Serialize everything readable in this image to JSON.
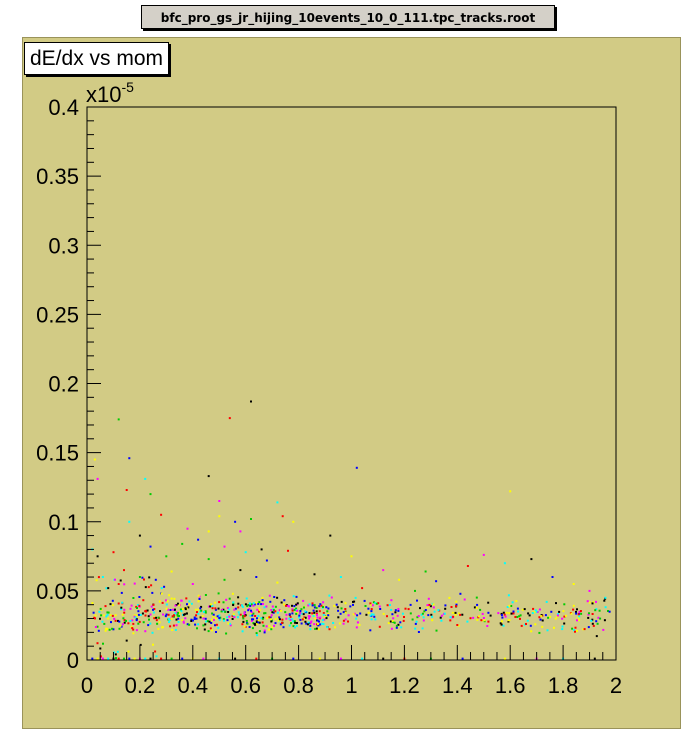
{
  "window": {
    "title": "bfc_pro_gs_jr_hijing_10events_10_0_111.tpc_tracks.root"
  },
  "colors": {
    "pad": "#d2cb85",
    "frame": "#000000",
    "title_box": "#ffffff"
  },
  "chart_data": {
    "type": "scatter",
    "title": "dE/dx vs mom",
    "xlabel": "",
    "ylabel": "",
    "xlim": [
      0,
      2
    ],
    "ylim": [
      0,
      0.4
    ],
    "y_multiplier": "x10",
    "y_multiplier_exp": "-5",
    "x_ticks": [
      {
        "v": 0,
        "label": "0"
      },
      {
        "v": 0.2,
        "label": "0.2"
      },
      {
        "v": 0.4,
        "label": "0.4"
      },
      {
        "v": 0.6,
        "label": "0.6"
      },
      {
        "v": 0.8,
        "label": "0.8"
      },
      {
        "v": 1,
        "label": "1"
      },
      {
        "v": 1.2,
        "label": "1.2"
      },
      {
        "v": 1.4,
        "label": "1.4"
      },
      {
        "v": 1.6,
        "label": "1.6"
      },
      {
        "v": 1.8,
        "label": "1.8"
      },
      {
        "v": 2,
        "label": "2"
      }
    ],
    "y_ticks": [
      {
        "v": 0,
        "label": "0"
      },
      {
        "v": 0.05,
        "label": "0.05"
      },
      {
        "v": 0.1,
        "label": "0.1"
      },
      {
        "v": 0.15,
        "label": "0.15"
      },
      {
        "v": 0.2,
        "label": "0.2"
      },
      {
        "v": 0.25,
        "label": "0.25"
      },
      {
        "v": 0.3,
        "label": "0.3"
      },
      {
        "v": 0.35,
        "label": "0.35"
      },
      {
        "v": 0.4,
        "label": "0.4"
      }
    ],
    "grid": false,
    "point_colors": [
      "#000000",
      "#ff0000",
      "#00cc00",
      "#0000ff",
      "#ffff00",
      "#ff00ff",
      "#00ffff"
    ],
    "points": [
      [
        0.62,
        0.187
      ],
      [
        0.54,
        0.175
      ],
      [
        0.12,
        0.174
      ],
      [
        0.16,
        0.146
      ],
      [
        0.03,
        0.145
      ],
      [
        0.04,
        0.131
      ],
      [
        0.22,
        0.131
      ],
      [
        0.46,
        0.133
      ],
      [
        0.15,
        0.123
      ],
      [
        0.24,
        0.12
      ],
      [
        1.02,
        0.139
      ],
      [
        1.6,
        0.122
      ],
      [
        0.5,
        0.115
      ],
      [
        0.72,
        0.114
      ],
      [
        0.92,
        0.09
      ],
      [
        0.28,
        0.105
      ],
      [
        0.62,
        0.102
      ],
      [
        0.56,
        0.1
      ],
      [
        0.5,
        0.104
      ],
      [
        0.38,
        0.095
      ],
      [
        0.16,
        0.1
      ],
      [
        0.2,
        0.09
      ],
      [
        0.74,
        0.104
      ],
      [
        0.36,
        0.084
      ],
      [
        0.42,
        0.087
      ],
      [
        0.46,
        0.093
      ],
      [
        0.52,
        0.082
      ],
      [
        0.6,
        0.078
      ],
      [
        0.66,
        0.08
      ],
      [
        0.76,
        0.079
      ],
      [
        0.3,
        0.075
      ],
      [
        0.24,
        0.082
      ],
      [
        0.78,
        0.1
      ],
      [
        0.58,
        0.093
      ],
      [
        0.02,
        0.08
      ],
      [
        0.04,
        0.075
      ],
      [
        0.1,
        0.078
      ],
      [
        0.46,
        0.073
      ],
      [
        0.68,
        0.072
      ],
      [
        1.0,
        0.075
      ],
      [
        1.5,
        0.076
      ],
      [
        1.58,
        0.07
      ],
      [
        1.68,
        0.073
      ],
      [
        1.44,
        0.068
      ],
      [
        1.28,
        0.064
      ],
      [
        1.32,
        0.057
      ],
      [
        1.18,
        0.058
      ],
      [
        1.12,
        0.065
      ],
      [
        0.96,
        0.06
      ],
      [
        0.86,
        0.062
      ],
      [
        1.04,
        0.052
      ],
      [
        1.24,
        0.05
      ],
      [
        1.76,
        0.06
      ],
      [
        1.84,
        0.055
      ],
      [
        1.9,
        0.05
      ],
      [
        1.96,
        0.045
      ],
      [
        0.58,
        0.065
      ],
      [
        0.14,
        0.065
      ],
      [
        0.2,
        0.06
      ],
      [
        0.26,
        0.058
      ],
      [
        0.32,
        0.064
      ],
      [
        0.4,
        0.055
      ],
      [
        0.06,
        0.06
      ],
      [
        0.08,
        0.052
      ],
      [
        0.12,
        0.055
      ],
      [
        0.52,
        0.058
      ],
      [
        0.64,
        0.06
      ],
      [
        0.72,
        0.056
      ]
    ],
    "zero_points": [
      [
        0.02,
        0
      ],
      [
        0.04,
        0
      ],
      [
        0.06,
        0
      ],
      [
        0.08,
        0
      ],
      [
        0.1,
        0
      ],
      [
        0.12,
        0
      ],
      [
        0.14,
        0
      ],
      [
        0.16,
        0
      ],
      [
        0.18,
        0
      ],
      [
        0.2,
        0
      ],
      [
        0.22,
        0
      ],
      [
        0.24,
        0
      ],
      [
        0.28,
        0
      ],
      [
        0.32,
        0
      ],
      [
        0.36,
        0
      ],
      [
        0.4,
        0
      ],
      [
        0.44,
        0
      ],
      [
        0.5,
        0
      ],
      [
        0.56,
        0
      ],
      [
        0.64,
        0
      ],
      [
        0.7,
        0
      ],
      [
        0.78,
        0
      ],
      [
        0.88,
        0
      ],
      [
        0.96,
        0
      ],
      [
        1.04,
        0
      ],
      [
        1.12,
        0
      ],
      [
        1.2,
        0
      ],
      [
        1.3,
        0
      ],
      [
        1.42,
        0
      ],
      [
        1.58,
        0
      ],
      [
        1.7,
        0
      ],
      [
        1.8,
        0
      ],
      [
        1.92,
        0
      ]
    ],
    "band": {
      "x_start": 0.02,
      "x_end": 1.98,
      "y_center": 0.033,
      "y_spread": 0.012,
      "count": 900
    }
  }
}
